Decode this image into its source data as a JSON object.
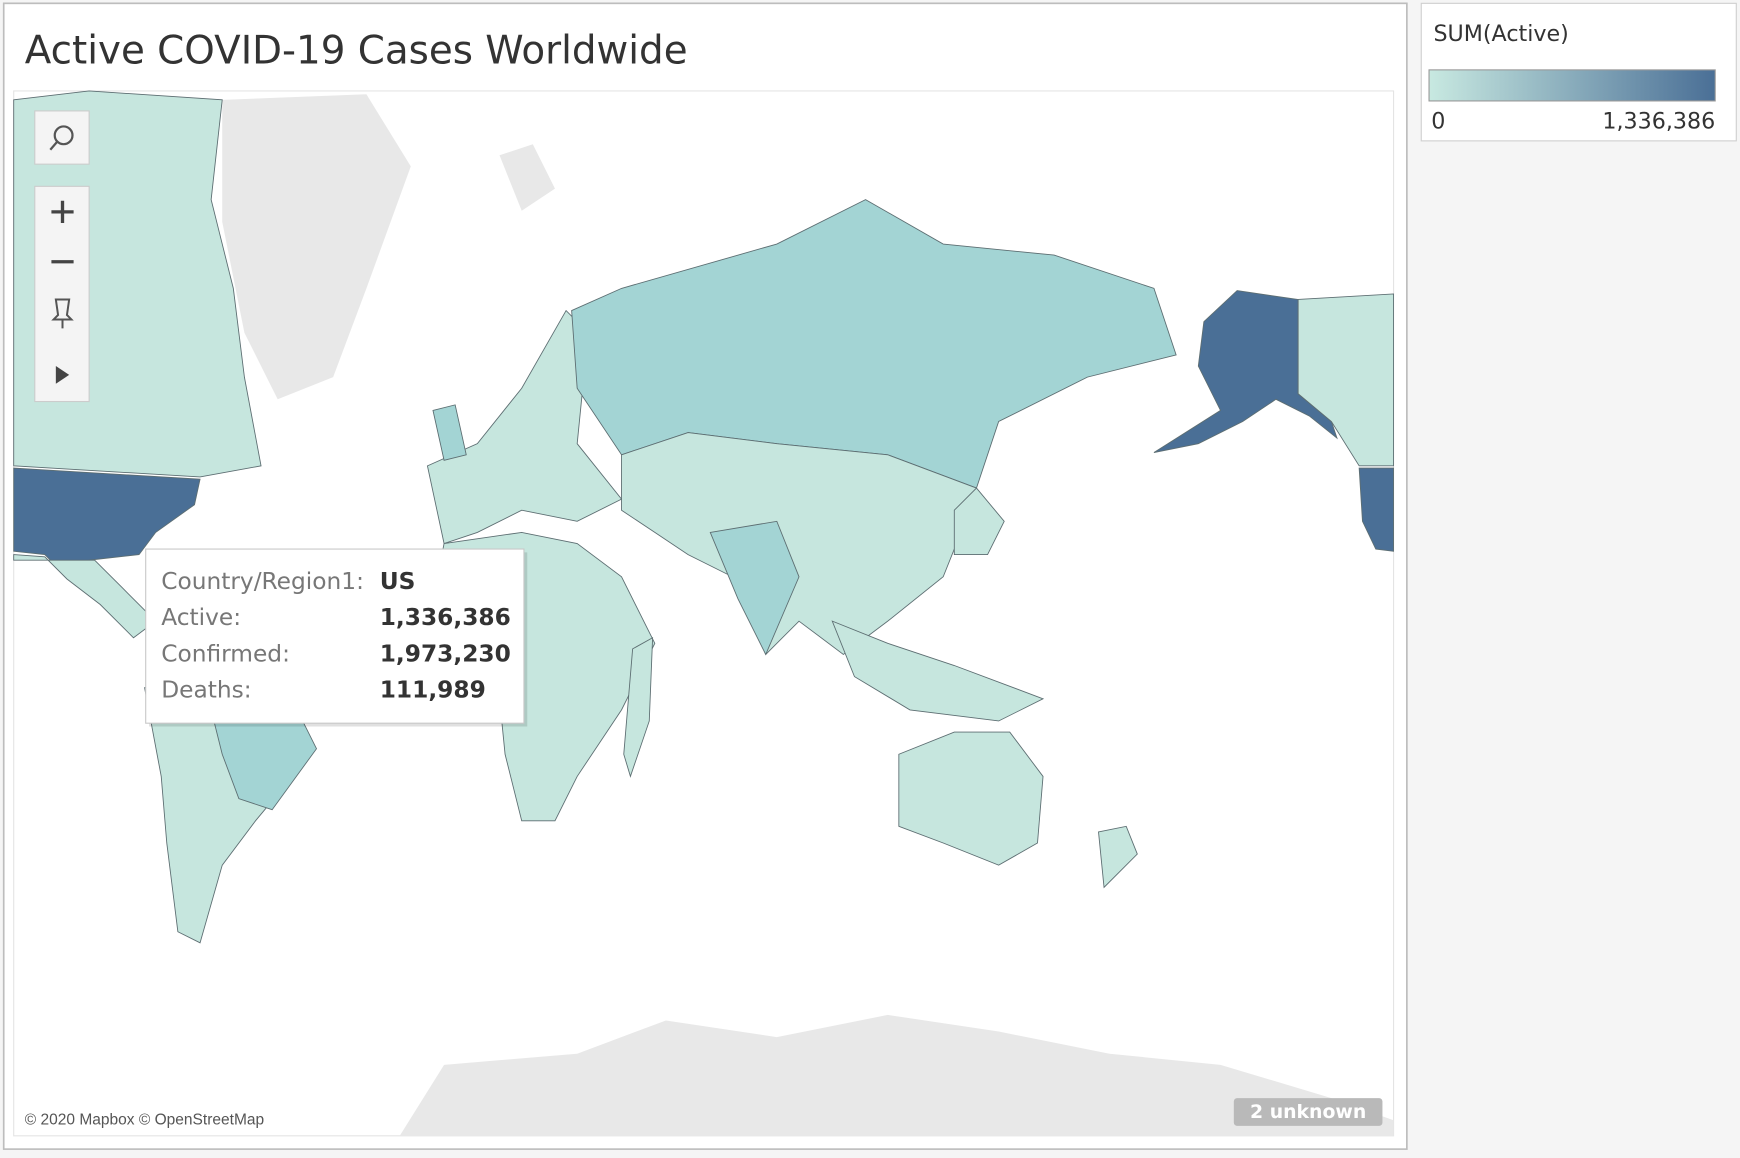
{
  "title": "Active COVID-19 Cases Worldwide",
  "legend": {
    "title": "SUM(Active)",
    "min": 0,
    "max": {
      "value": 1336386,
      "label": "1,336,386"
    },
    "color_low": "#c8e9e1",
    "color_high": "#4a6f96"
  },
  "tooltip": {
    "rows": [
      {
        "label": "Country/Region1:",
        "value": "US"
      },
      {
        "label": "Active:",
        "value": "1,336,386"
      },
      {
        "label": "Confirmed:",
        "value": "1,973,230"
      },
      {
        "label": "Deaths:",
        "value": "111,989"
      }
    ]
  },
  "attribution": "© 2020 Mapbox © OpenStreetMap",
  "unknown_badge": "2 unknown"
}
